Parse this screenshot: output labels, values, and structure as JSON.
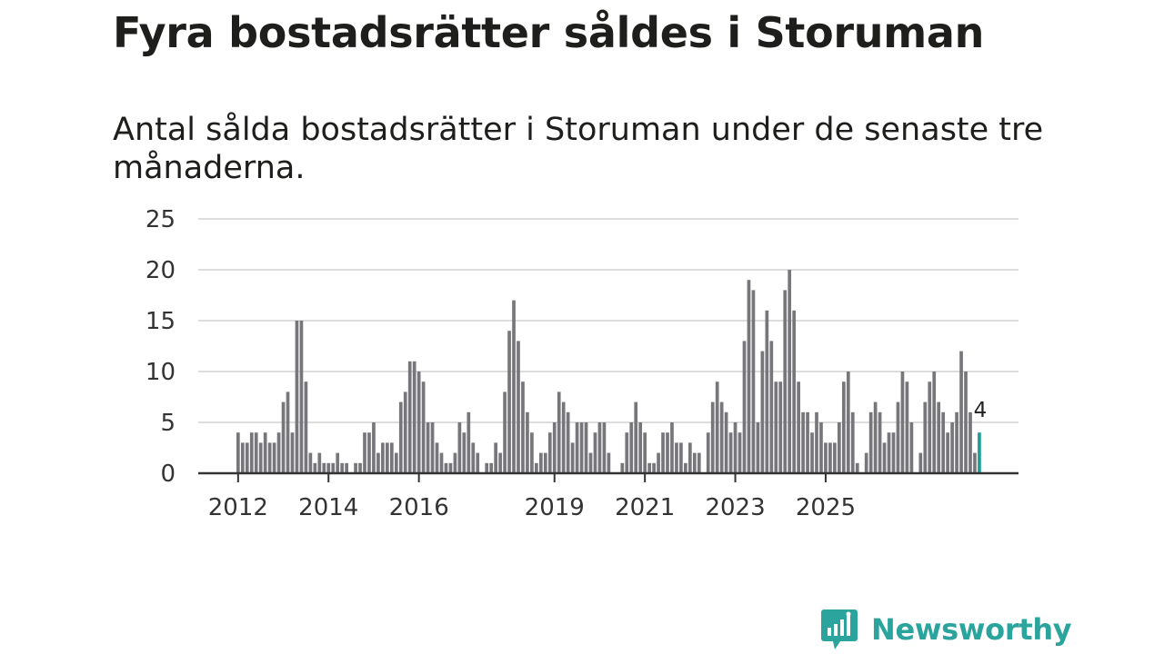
{
  "title": "Fyra bostadsrätter såldes i Storuman",
  "subtitle": "Antal sålda bostadsrätter i Storuman under de senaste tre månaderna.",
  "brand": {
    "name": "Newsworthy",
    "icon": "newsworthy-logo-icon"
  },
  "colors": {
    "bar": "#77767b",
    "highlight": "#1f9e98",
    "grid": "#dddddd",
    "axis": "#333333",
    "brand": "#2aa49d"
  },
  "chart_data": {
    "type": "bar",
    "title": "Fyra bostadsrätter såldes i Storuman",
    "xlabel": "",
    "ylabel": "",
    "ylim": [
      0,
      25
    ],
    "yticks": [
      0,
      5,
      10,
      15,
      20,
      25
    ],
    "xtick_labels": [
      {
        "label": "2012",
        "index": 0
      },
      {
        "label": "2014",
        "index": 20
      },
      {
        "label": "2016",
        "index": 40
      },
      {
        "label": "2019",
        "index": 70
      },
      {
        "label": "2021",
        "index": 90
      },
      {
        "label": "2023",
        "index": 110
      },
      {
        "label": "2025",
        "index": 130
      }
    ],
    "values": [
      4,
      3,
      3,
      4,
      4,
      3,
      4,
      3,
      3,
      4,
      7,
      8,
      4,
      15,
      15,
      9,
      2,
      1,
      2,
      1,
      1,
      1,
      2,
      1,
      1,
      0,
      1,
      1,
      4,
      4,
      5,
      2,
      3,
      3,
      3,
      2,
      7,
      8,
      11,
      11,
      10,
      9,
      5,
      5,
      3,
      2,
      1,
      1,
      2,
      5,
      4,
      6,
      3,
      2,
      0,
      1,
      1,
      3,
      2,
      8,
      14,
      17,
      13,
      9,
      6,
      4,
      1,
      2,
      2,
      4,
      5,
      8,
      7,
      6,
      3,
      5,
      5,
      5,
      2,
      4,
      5,
      5,
      2,
      0,
      0,
      1,
      4,
      5,
      7,
      5,
      4,
      1,
      1,
      2,
      4,
      4,
      5,
      3,
      3,
      1,
      3,
      2,
      2,
      0,
      4,
      7,
      9,
      7,
      6,
      4,
      5,
      4,
      13,
      19,
      18,
      5,
      12,
      16,
      13,
      9,
      9,
      18,
      20,
      16,
      9,
      6,
      6,
      4,
      6,
      5,
      3,
      3,
      3,
      5,
      9,
      10,
      6,
      1,
      0,
      2,
      6,
      7,
      6,
      3,
      4,
      4,
      7,
      10,
      9,
      5,
      0,
      2,
      7,
      9,
      10,
      7,
      6,
      4,
      5,
      6,
      12,
      10,
      6,
      2,
      4
    ],
    "highlight_index": 164,
    "highlight_label": "4"
  }
}
